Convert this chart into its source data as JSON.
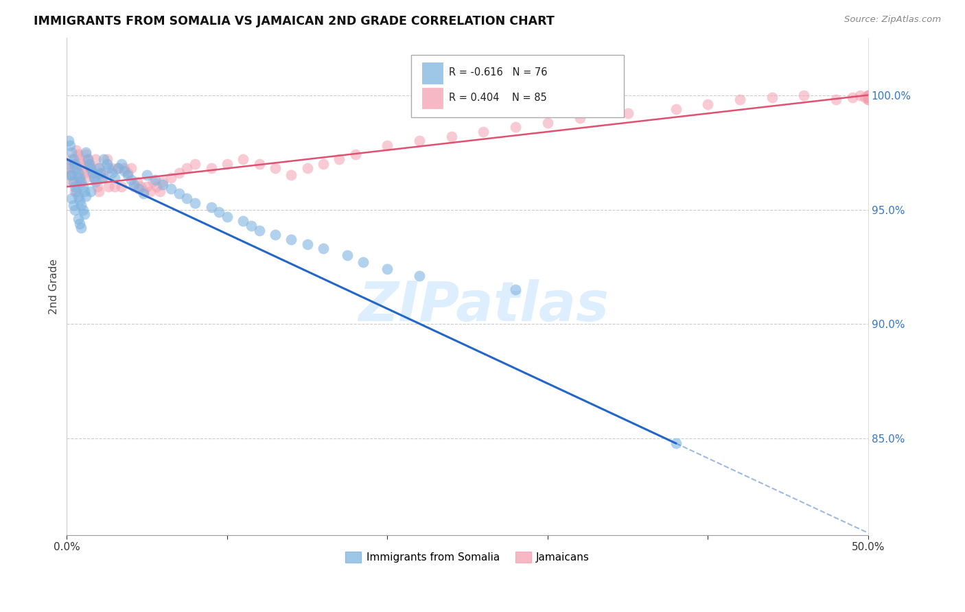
{
  "title": "IMMIGRANTS FROM SOMALIA VS JAMAICAN 2ND GRADE CORRELATION CHART",
  "source": "Source: ZipAtlas.com",
  "ylabel": "2nd Grade",
  "color_somalia": "#7eb3e0",
  "color_jamaica": "#f4a0b0",
  "color_somalia_line": "#2266cc",
  "color_jamaica_line": "#e05070",
  "watermark_color": "#ddeeff",
  "xlim": [
    0.0,
    0.5
  ],
  "ylim": [
    0.808,
    1.025
  ],
  "somalia_scatter_x": [
    0.001,
    0.001,
    0.002,
    0.002,
    0.003,
    0.003,
    0.003,
    0.004,
    0.004,
    0.004,
    0.005,
    0.005,
    0.005,
    0.006,
    0.006,
    0.007,
    0.007,
    0.007,
    0.008,
    0.008,
    0.008,
    0.009,
    0.009,
    0.009,
    0.01,
    0.01,
    0.011,
    0.011,
    0.012,
    0.012,
    0.013,
    0.014,
    0.015,
    0.015,
    0.016,
    0.017,
    0.018,
    0.02,
    0.021,
    0.022,
    0.023,
    0.025,
    0.026,
    0.028,
    0.03,
    0.032,
    0.034,
    0.036,
    0.038,
    0.04,
    0.042,
    0.045,
    0.048,
    0.05,
    0.055,
    0.06,
    0.065,
    0.07,
    0.075,
    0.08,
    0.09,
    0.095,
    0.1,
    0.11,
    0.115,
    0.12,
    0.13,
    0.14,
    0.15,
    0.16,
    0.175,
    0.185,
    0.2,
    0.22,
    0.28,
    0.38
  ],
  "somalia_scatter_y": [
    0.98,
    0.97,
    0.978,
    0.965,
    0.975,
    0.965,
    0.955,
    0.972,
    0.962,
    0.952,
    0.97,
    0.96,
    0.95,
    0.968,
    0.958,
    0.966,
    0.956,
    0.946,
    0.964,
    0.954,
    0.944,
    0.962,
    0.952,
    0.942,
    0.96,
    0.95,
    0.958,
    0.948,
    0.975,
    0.956,
    0.972,
    0.97,
    0.968,
    0.958,
    0.966,
    0.964,
    0.962,
    0.968,
    0.966,
    0.964,
    0.972,
    0.97,
    0.968,
    0.966,
    0.964,
    0.968,
    0.97,
    0.967,
    0.965,
    0.963,
    0.961,
    0.959,
    0.957,
    0.965,
    0.963,
    0.961,
    0.959,
    0.957,
    0.955,
    0.953,
    0.951,
    0.949,
    0.947,
    0.945,
    0.943,
    0.941,
    0.939,
    0.937,
    0.935,
    0.933,
    0.93,
    0.927,
    0.924,
    0.921,
    0.915,
    0.848
  ],
  "jamaica_scatter_x": [
    0.001,
    0.002,
    0.003,
    0.003,
    0.004,
    0.005,
    0.005,
    0.006,
    0.007,
    0.007,
    0.008,
    0.008,
    0.009,
    0.01,
    0.011,
    0.012,
    0.012,
    0.013,
    0.014,
    0.015,
    0.016,
    0.017,
    0.018,
    0.019,
    0.02,
    0.02,
    0.022,
    0.023,
    0.025,
    0.026,
    0.028,
    0.03,
    0.032,
    0.034,
    0.036,
    0.038,
    0.04,
    0.042,
    0.044,
    0.046,
    0.048,
    0.05,
    0.052,
    0.054,
    0.056,
    0.058,
    0.06,
    0.065,
    0.07,
    0.075,
    0.08,
    0.09,
    0.1,
    0.11,
    0.12,
    0.13,
    0.14,
    0.15,
    0.16,
    0.17,
    0.18,
    0.2,
    0.22,
    0.24,
    0.26,
    0.28,
    0.3,
    0.32,
    0.35,
    0.38,
    0.4,
    0.42,
    0.44,
    0.46,
    0.48,
    0.49,
    0.495,
    0.498,
    0.5,
    0.5,
    0.5,
    0.5,
    0.5,
    0.5,
    0.5
  ],
  "jamaica_scatter_y": [
    0.968,
    0.966,
    0.972,
    0.962,
    0.97,
    0.968,
    0.958,
    0.976,
    0.974,
    0.964,
    0.972,
    0.962,
    0.97,
    0.968,
    0.966,
    0.974,
    0.964,
    0.972,
    0.97,
    0.968,
    0.966,
    0.964,
    0.972,
    0.96,
    0.968,
    0.958,
    0.966,
    0.964,
    0.972,
    0.96,
    0.968,
    0.96,
    0.968,
    0.96,
    0.968,
    0.966,
    0.968,
    0.96,
    0.962,
    0.96,
    0.958,
    0.96,
    0.958,
    0.962,
    0.96,
    0.958,
    0.962,
    0.964,
    0.966,
    0.968,
    0.97,
    0.968,
    0.97,
    0.972,
    0.97,
    0.968,
    0.965,
    0.968,
    0.97,
    0.972,
    0.974,
    0.978,
    0.98,
    0.982,
    0.984,
    0.986,
    0.988,
    0.99,
    0.992,
    0.994,
    0.996,
    0.998,
    0.999,
    1.0,
    0.998,
    0.999,
    1.0,
    0.999,
    1.0,
    0.998,
    0.999,
    1.0,
    0.998,
    0.999,
    1.0
  ],
  "somalia_line_x0": 0.0,
  "somalia_line_y0": 0.972,
  "somalia_line_x1": 0.38,
  "somalia_line_y1": 0.848,
  "somalia_line_solid_end": 0.38,
  "somalia_line_dashed_end": 0.5,
  "jamaica_line_x0": 0.0,
  "jamaica_line_y0": 0.96,
  "jamaica_line_x1": 0.5,
  "jamaica_line_y1": 1.0
}
